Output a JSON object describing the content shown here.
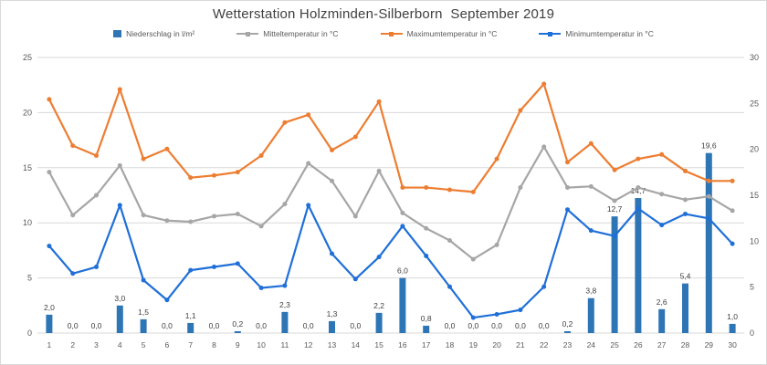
{
  "title": "Wetterstation Holzminden-Silberborn  September 2019",
  "legend": [
    {
      "label": "Niederschlag in l/m²",
      "type": "bar",
      "color": "#2E75B6"
    },
    {
      "label": "Mitteltemperatur in °C",
      "type": "line",
      "color": "#A6A6A6"
    },
    {
      "label": "Maximumtemperatur in °C",
      "type": "line",
      "color": "#ED7D31"
    },
    {
      "label": "Minimumtemperatur in °C",
      "type": "line",
      "color": "#1F6FD8"
    }
  ],
  "colors": {
    "bar": "#2E75B6",
    "mittel": "#A6A6A6",
    "max": "#ED7D31",
    "min": "#1F6FD8",
    "gridline": "#D9D9D9",
    "axis_text": "#595959",
    "bar_label_text": "#404040",
    "title_text": "#404040"
  },
  "chart_data": {
    "type": "combo",
    "title": "Wetterstation Holzminden-Silberborn  September 2019",
    "xlabel": "",
    "ylabel_left": "",
    "ylabel_right": "",
    "x": [
      1,
      2,
      3,
      4,
      5,
      6,
      7,
      8,
      9,
      10,
      11,
      12,
      13,
      14,
      15,
      16,
      17,
      18,
      19,
      20,
      21,
      22,
      23,
      24,
      25,
      26,
      27,
      28,
      29,
      30
    ],
    "left_axis": {
      "min": 0,
      "max": 25,
      "step": 5,
      "ticks": [
        0,
        5,
        10,
        15,
        20,
        25
      ]
    },
    "right_axis": {
      "min": 0,
      "max": 30,
      "step": 5,
      "ticks": [
        0,
        5,
        10,
        15,
        20,
        25,
        30
      ]
    },
    "grid": "horizontal",
    "legend_position": "top",
    "decimal_separator": ",",
    "series": [
      {
        "name": "Niederschlag in l/m²",
        "type": "bar",
        "axis": "right",
        "color": "#2E75B6",
        "data_labels": true,
        "values": [
          2.0,
          0.0,
          0.0,
          3.0,
          1.5,
          0.0,
          1.1,
          0.0,
          0.2,
          0.0,
          2.3,
          0.0,
          1.3,
          0.0,
          2.2,
          6.0,
          0.8,
          0.0,
          0.0,
          0.0,
          0.0,
          0.0,
          0.2,
          3.8,
          12.7,
          14.7,
          2.6,
          5.4,
          19.6,
          1.0
        ]
      },
      {
        "name": "Mitteltemperatur in °C",
        "type": "line",
        "axis": "left",
        "color": "#A6A6A6",
        "data_labels": false,
        "values": [
          14.6,
          10.7,
          12.5,
          15.2,
          10.7,
          10.2,
          10.1,
          10.6,
          10.8,
          9.7,
          11.7,
          15.4,
          13.8,
          10.6,
          14.7,
          10.9,
          9.5,
          8.4,
          6.7,
          8.0,
          13.2,
          16.9,
          13.2,
          13.3,
          12.0,
          13.2,
          12.6,
          12.1,
          12.4,
          11.1
        ]
      },
      {
        "name": "Maximumtemperatur in °C",
        "type": "line",
        "axis": "left",
        "color": "#ED7D31",
        "data_labels": false,
        "values": [
          21.2,
          17.0,
          16.1,
          22.1,
          15.8,
          16.7,
          14.1,
          14.3,
          14.6,
          16.1,
          19.1,
          19.8,
          16.6,
          17.8,
          21.0,
          13.2,
          13.2,
          13.0,
          12.8,
          15.8,
          20.2,
          22.6,
          15.5,
          17.2,
          14.8,
          15.8,
          16.2,
          14.7,
          13.8,
          13.8
        ]
      },
      {
        "name": "Minimumtemperatur in °C",
        "type": "line",
        "axis": "left",
        "color": "#1F6FD8",
        "data_labels": false,
        "values": [
          7.9,
          5.4,
          6.0,
          11.6,
          4.8,
          3.0,
          5.7,
          6.0,
          6.3,
          4.1,
          4.3,
          11.6,
          7.2,
          4.9,
          6.9,
          9.7,
          7.0,
          4.2,
          1.4,
          1.7,
          2.1,
          4.2,
          11.2,
          9.3,
          8.8,
          11.3,
          9.8,
          10.8,
          10.4,
          8.1
        ]
      }
    ]
  }
}
